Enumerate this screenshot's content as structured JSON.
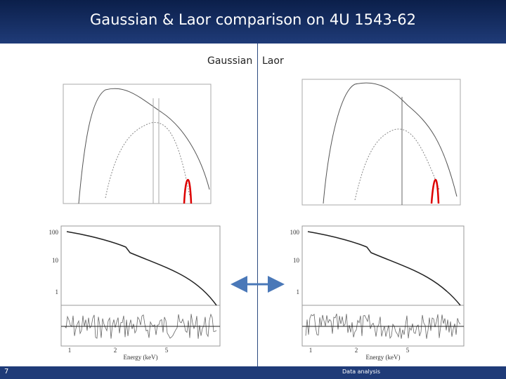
{
  "header": {
    "title": "Gaussian & Laor comparison on 4U 1543-62"
  },
  "labels": {
    "left": "Gaussian",
    "right": "Laor"
  },
  "panels": [
    {
      "y_ticks": [
        "100",
        "10",
        "1"
      ],
      "x_ticks": [
        "1",
        "2",
        "5"
      ],
      "x_label": "Energy (keV)"
    },
    {
      "y_ticks": [
        "100",
        "10",
        "1"
      ],
      "x_ticks": [
        "1",
        "2",
        "5"
      ],
      "x_label": "Energy (keV)"
    }
  ],
  "footer": {
    "page": "7",
    "section": "Data analysis"
  }
}
